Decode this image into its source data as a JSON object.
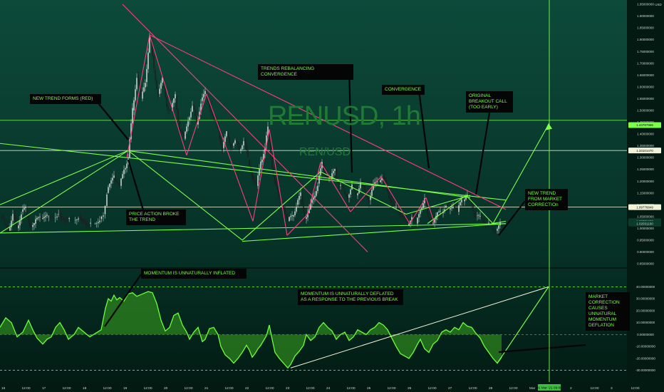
{
  "chart_data": [
    {
      "type": "candlestick",
      "title": "RENUSD, 1h",
      "subtitle": "REN/USD",
      "ylim": [
        0.85,
        1.95
      ],
      "y_axis_labels": [
        "1.95000000",
        "1.90000000",
        "1.85000000",
        "1.80000000",
        "1.75000000",
        "1.70000000",
        "1.65000000",
        "1.60000000",
        "1.55000000",
        "1.50000000",
        "1.45000000",
        "1.40000000",
        "1.35000000",
        "1.30000000",
        "1.25000000",
        "1.20000000",
        "1.15000000",
        "1.10000000",
        "1.05000000",
        "1.00000000",
        "0.95000000",
        "0.90000000",
        "0.85000000"
      ],
      "y_axis_unit": "USD",
      "x_axis_labels": [
        "16",
        "12:00",
        "17",
        "12:00",
        "18",
        "12:00",
        "19",
        "12:00",
        "20",
        "12:00",
        "21",
        "12:00",
        "22",
        "12:00",
        "23",
        "12:00",
        "24",
        "12:00",
        "25",
        "12:00",
        "26",
        "12:00",
        "27",
        "12:00",
        "28",
        "12:00",
        "Mar",
        "12:00",
        "2",
        "12:00",
        "3",
        "12:00"
      ],
      "price_tags": [
        {
          "value": 1.43787966,
          "label": "1.43787966",
          "color": "#7cff4a"
        },
        {
          "value": 1.33,
          "label": "1.33101470",
          "color": "#f2f2d8"
        },
        {
          "value": 1.09,
          "label": "1.09776849",
          "color": "#f2f2d8"
        },
        {
          "value": 1.03,
          "label": "1.03771800",
          "color": "#0b3b2b"
        },
        {
          "value": 1.02,
          "label": "1.02031100",
          "color": "#0b3b2b"
        }
      ],
      "horizontal_levels": [
        1.458,
        1.33,
        1.09
      ],
      "price_path": [
        [
          0,
          1.05
        ],
        [
          6,
          1.02
        ],
        [
          12,
          0.99
        ],
        [
          18,
          1.06
        ],
        [
          24,
          1.0
        ],
        [
          30,
          1.07
        ],
        [
          36,
          1.08
        ],
        [
          42,
          1.01
        ],
        [
          48,
          1.02
        ],
        [
          56,
          1.05
        ],
        [
          66,
          1.05
        ],
        [
          80,
          1.06
        ],
        [
          95,
          1.04
        ],
        [
          110,
          1.05
        ],
        [
          125,
          1.02
        ],
        [
          140,
          1.04
        ],
        [
          145,
          1.06
        ],
        [
          150,
          1.15
        ],
        [
          160,
          1.22
        ],
        [
          168,
          1.18
        ],
        [
          174,
          1.25
        ],
        [
          180,
          1.3
        ],
        [
          186,
          1.5
        ],
        [
          192,
          1.65
        ],
        [
          198,
          1.55
        ],
        [
          204,
          1.62
        ],
        [
          210,
          1.82
        ],
        [
          216,
          1.67
        ],
        [
          222,
          1.57
        ],
        [
          228,
          1.63
        ],
        [
          234,
          1.52
        ],
        [
          240,
          1.5
        ],
        [
          246,
          1.56
        ],
        [
          252,
          1.42
        ],
        [
          258,
          1.38
        ],
        [
          264,
          1.46
        ],
        [
          270,
          1.52
        ],
        [
          276,
          1.44
        ],
        [
          282,
          1.54
        ],
        [
          288,
          1.57
        ],
        [
          294,
          1.52
        ],
        [
          300,
          1.46
        ],
        [
          306,
          1.42
        ],
        [
          312,
          1.34
        ],
        [
          318,
          1.4
        ],
        [
          324,
          1.35
        ],
        [
          330,
          1.37
        ],
        [
          336,
          1.33
        ],
        [
          342,
          1.38
        ],
        [
          348,
          1.29
        ],
        [
          354,
          1.22
        ],
        [
          360,
          1.18
        ],
        [
          366,
          1.28
        ],
        [
          372,
          1.35
        ],
        [
          376,
          1.42
        ],
        [
          380,
          1.3
        ],
        [
          386,
          1.2
        ],
        [
          392,
          1.12
        ],
        [
          398,
          1.09
        ],
        [
          404,
          1.03
        ],
        [
          410,
          1.05
        ],
        [
          416,
          1.1
        ],
        [
          422,
          1.14
        ],
        [
          428,
          1.04
        ],
        [
          434,
          1.08
        ],
        [
          440,
          1.13
        ],
        [
          446,
          1.19
        ],
        [
          452,
          1.27
        ],
        [
          458,
          1.22
        ],
        [
          464,
          1.21
        ],
        [
          470,
          1.25
        ],
        [
          476,
          1.18
        ],
        [
          482,
          1.16
        ],
        [
          488,
          1.13
        ],
        [
          494,
          1.18
        ],
        [
          500,
          1.14
        ],
        [
          506,
          1.2
        ],
        [
          512,
          1.15
        ],
        [
          518,
          1.12
        ],
        [
          524,
          1.18
        ],
        [
          530,
          1.2
        ],
        [
          536,
          1.22
        ],
        [
          542,
          1.18
        ],
        [
          548,
          1.12
        ],
        [
          554,
          1.09
        ],
        [
          560,
          1.07
        ],
        [
          566,
          1.05
        ],
        [
          572,
          1.01
        ],
        [
          578,
          1.06
        ],
        [
          584,
          1.02
        ],
        [
          590,
          1.08
        ],
        [
          596,
          1.13
        ],
        [
          600,
          1.05
        ],
        [
          606,
          1.02
        ],
        [
          612,
          1.05
        ],
        [
          618,
          1.07
        ],
        [
          624,
          1.09
        ],
        [
          630,
          1.08
        ],
        [
          636,
          1.1
        ],
        [
          642,
          1.07
        ],
        [
          648,
          1.12
        ],
        [
          654,
          1.14
        ],
        [
          660,
          1.12
        ],
        [
          666,
          1.06
        ],
        [
          672,
          1.05
        ],
        [
          678,
          1.03
        ],
        [
          684,
          1.02
        ],
        [
          690,
          1.0
        ],
        [
          696,
          0.99
        ],
        [
          702,
          1.02
        ]
      ]
    },
    {
      "type": "area",
      "name": "Momentum oscillator",
      "ylim": [
        -35,
        45
      ],
      "y_axis_labels": [
        "40.00000000",
        "30.00000000",
        "20.00000000",
        "10.00000000",
        "0.00000000",
        "-10.00000000",
        "-20.00000000",
        "-30.00000000"
      ],
      "levels": [
        40,
        0,
        -30
      ],
      "values": [
        [
          0,
          6
        ],
        [
          8,
          14
        ],
        [
          16,
          10
        ],
        [
          24,
          -2
        ],
        [
          32,
          2
        ],
        [
          40,
          12
        ],
        [
          46,
          4
        ],
        [
          52,
          -3
        ],
        [
          60,
          -8
        ],
        [
          66,
          -4
        ],
        [
          72,
          -2
        ],
        [
          78,
          6
        ],
        [
          84,
          10
        ],
        [
          90,
          4
        ],
        [
          96,
          -4
        ],
        [
          104,
          0
        ],
        [
          110,
          6
        ],
        [
          118,
          2
        ],
        [
          126,
          -2
        ],
        [
          134,
          1
        ],
        [
          142,
          4
        ],
        [
          148,
          22
        ],
        [
          152,
          30
        ],
        [
          156,
          28
        ],
        [
          160,
          33
        ],
        [
          164,
          29
        ],
        [
          168,
          31
        ],
        [
          174,
          28
        ],
        [
          180,
          34
        ],
        [
          186,
          35
        ],
        [
          192,
          32
        ],
        [
          200,
          34
        ],
        [
          208,
          36
        ],
        [
          214,
          35
        ],
        [
          220,
          26
        ],
        [
          226,
          12
        ],
        [
          232,
          3
        ],
        [
          238,
          6
        ],
        [
          244,
          16
        ],
        [
          250,
          18
        ],
        [
          256,
          8
        ],
        [
          262,
          2
        ],
        [
          266,
          -4
        ],
        [
          272,
          2
        ],
        [
          278,
          6
        ],
        [
          284,
          -6
        ],
        [
          288,
          -4
        ],
        [
          294,
          5
        ],
        [
          300,
          6
        ],
        [
          306,
          0
        ],
        [
          310,
          -10
        ],
        [
          316,
          -17
        ],
        [
          322,
          -20
        ],
        [
          328,
          -24
        ],
        [
          334,
          -20
        ],
        [
          340,
          -15
        ],
        [
          346,
          -9
        ],
        [
          350,
          -13
        ],
        [
          354,
          -19
        ],
        [
          358,
          -16
        ],
        [
          362,
          -12
        ],
        [
          366,
          -9
        ],
        [
          370,
          -5
        ],
        [
          374,
          -1
        ],
        [
          378,
          8
        ],
        [
          382,
          -4
        ],
        [
          386,
          -15
        ],
        [
          392,
          -20
        ],
        [
          398,
          -24
        ],
        [
          404,
          -28
        ],
        [
          408,
          -25
        ],
        [
          414,
          -18
        ],
        [
          420,
          -14
        ],
        [
          426,
          -9
        ],
        [
          430,
          0
        ],
        [
          436,
          -5
        ],
        [
          442,
          -2
        ],
        [
          448,
          6
        ],
        [
          454,
          10
        ],
        [
          460,
          6
        ],
        [
          466,
          3
        ],
        [
          472,
          -4
        ],
        [
          478,
          0
        ],
        [
          484,
          2
        ],
        [
          490,
          -5
        ],
        [
          496,
          -2
        ],
        [
          502,
          4
        ],
        [
          508,
          2
        ],
        [
          514,
          0
        ],
        [
          520,
          4
        ],
        [
          526,
          6
        ],
        [
          532,
          10
        ],
        [
          538,
          8
        ],
        [
          544,
          4
        ],
        [
          550,
          -3
        ],
        [
          556,
          -10
        ],
        [
          562,
          -16
        ],
        [
          568,
          -18
        ],
        [
          574,
          -20
        ],
        [
          580,
          -15
        ],
        [
          586,
          -8
        ],
        [
          590,
          -4
        ],
        [
          596,
          -12
        ],
        [
          602,
          -15
        ],
        [
          608,
          -8
        ],
        [
          614,
          -5
        ],
        [
          620,
          2
        ],
        [
          626,
          4
        ],
        [
          632,
          2
        ],
        [
          638,
          6
        ],
        [
          644,
          4
        ],
        [
          650,
          10
        ],
        [
          656,
          7
        ],
        [
          662,
          6
        ],
        [
          668,
          1
        ],
        [
          674,
          -3
        ],
        [
          680,
          -10
        ],
        [
          686,
          -15
        ],
        [
          692,
          -20
        ],
        [
          698,
          -24
        ],
        [
          704,
          -19
        ]
      ]
    }
  ],
  "annotations": {
    "new_trend_red": "NEW TREND FORMS (RED)",
    "trends_rebalancing": "TRENDS REBALANCING CONVERGENCE",
    "convergence": "CONVERGENCE",
    "original_breakout": "ORIGINAL BREAKOUT CALL (TOO EARLY)",
    "price_action_broke": "PRICE ACTION BROKE THE TREND",
    "new_trend_market": "NEW TREND FROM MARKET CORRECTIOn",
    "momentum_inflated": "MOMENTUM IS UNNATURALLY INFLATED",
    "momentum_deflated": "MOMENTUM IS UNNATURALLY DEFLATED AS A RESPONSE TO THE PREVIOUS BREAK",
    "market_correction": "MARKET CORRECTION CAUSES UNNATURAL MOMENTUM DEFLATION"
  },
  "cursor_date_label": "01 Mar '21 09:00",
  "colors": {
    "background_top": "#0d4a3a",
    "background_bottom": "#021a12",
    "bull_candle": "#dfe6df",
    "bear_candle": "#1c1c1c",
    "trend_green": "#7cff4a",
    "trend_red": "#ff3d7f",
    "level_white": "#f2f2d8",
    "oscillator_fill": "#2f8a1e",
    "oscillator_line": "#6cff3c"
  }
}
